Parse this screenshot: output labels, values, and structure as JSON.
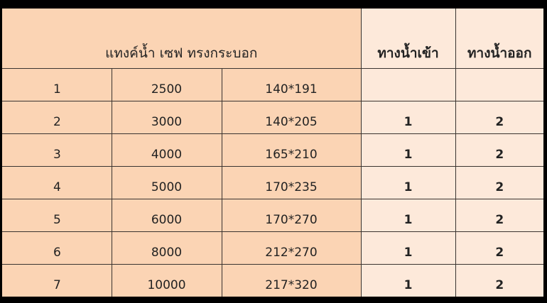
{
  "header": {
    "title": "แทงค์น้ำ  เซฟ ทรงกระบอก",
    "inlet": "ทางน้ำเข้า",
    "outlet": "ทางน้ำออก"
  },
  "rows": [
    {
      "no": "1",
      "capacity": "2500",
      "size": "140*191",
      "inlet": "",
      "outlet": ""
    },
    {
      "no": "2",
      "capacity": "3000",
      "size": "140*205",
      "inlet": "1",
      "outlet": "2"
    },
    {
      "no": "3",
      "capacity": "4000",
      "size": "165*210",
      "inlet": "1",
      "outlet": "2"
    },
    {
      "no": "4",
      "capacity": "5000",
      "size": "170*235",
      "inlet": "1",
      "outlet": "2"
    },
    {
      "no": "5",
      "capacity": "6000",
      "size": "170*270",
      "inlet": "1",
      "outlet": "2"
    },
    {
      "no": "6",
      "capacity": "8000",
      "size": "212*270",
      "inlet": "1",
      "outlet": "2"
    },
    {
      "no": "7",
      "capacity": "10000",
      "size": "217*320",
      "inlet": "1",
      "outlet": "2"
    }
  ],
  "colors": {
    "left_fill": "#fbd4b4",
    "right_fill": "#fde9da",
    "frame": "#000000"
  }
}
